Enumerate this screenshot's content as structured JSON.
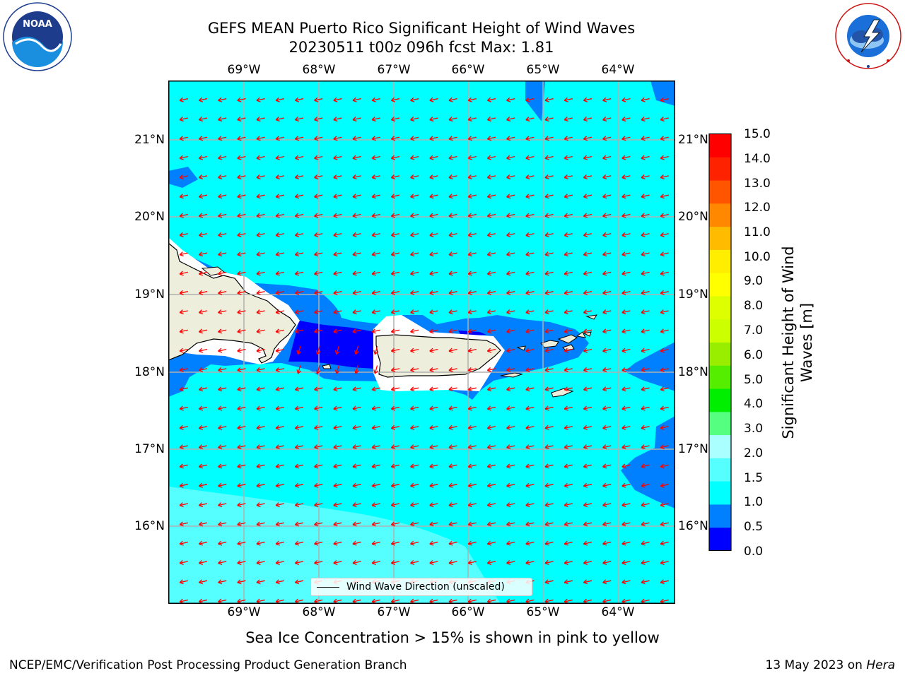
{
  "title": {
    "line1": "GEFS MEAN Puerto Rico Significant Height of Wind Waves",
    "line2": "20230511 t00z 096h fcst   Max: 1.81"
  },
  "logos": {
    "noaa_text": "NOAA",
    "noaa_ring": "NATIONAL OCEANIC AND ATMOSPHERIC ADMINISTRATION · U.S. DEPARTMENT OF COMMERCE",
    "nws_ring": "NATIONAL WEATHER SERVICE"
  },
  "map": {
    "lon_labels": [
      "69°W",
      "68°W",
      "67°W",
      "66°W",
      "65°W",
      "64°W"
    ],
    "lat_labels": [
      "21°N",
      "20°N",
      "19°N",
      "18°N",
      "17°N",
      "16°N"
    ],
    "legend_label": "Wind Wave Direction (unscaled)",
    "colors": {
      "ocean_main": "#00ffff",
      "ocean_light": "#55ffff",
      "band_05_10": "#0080ff",
      "band_00_05": "#0000ff",
      "land": "#eeeedd",
      "arrow": "#ff0000",
      "grid": "#b0b0b0"
    }
  },
  "colorbar": {
    "title": "Significant Height of Wind Waves [m]",
    "levels": [
      "15.0",
      "14.0",
      "13.0",
      "12.0",
      "11.0",
      "10.0",
      "9.0",
      "8.0",
      "7.0",
      "6.0",
      "5.0",
      "4.0",
      "3.0",
      "2.0",
      "1.5",
      "1.0",
      "0.5",
      "0.0"
    ],
    "colors": [
      "#0000ff",
      "#0080ff",
      "#00ffff",
      "#55ffff",
      "#aaffff",
      "#55ff80",
      "#00ee00",
      "#55ee00",
      "#99ee00",
      "#ccff00",
      "#ddff00",
      "#ffff00",
      "#ffee00",
      "#ffbb00",
      "#ff8800",
      "#ff5500",
      "#ff2200",
      "#ff0000"
    ]
  },
  "ice_note": "Sea Ice Concentration > 15% is shown in pink to yellow",
  "footer": {
    "left": "NCEP/EMC/Verification Post Processing Product Generation Branch",
    "date": "13 May 2023 on",
    "machine": "Hera"
  }
}
